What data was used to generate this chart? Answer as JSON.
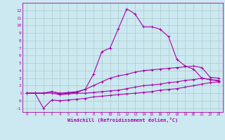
{
  "xlabel": "Windchill (Refroidissement éolien,°C)",
  "background_color": "#cce8f0",
  "grid_color": "#aacccc",
  "line_color": "#aa00aa",
  "x_vals": [
    0,
    1,
    2,
    3,
    4,
    5,
    6,
    7,
    8,
    9,
    10,
    11,
    12,
    13,
    14,
    15,
    16,
    17,
    18,
    19,
    20,
    21,
    22,
    23
  ],
  "series_spike": [
    1,
    1,
    1,
    1.2,
    0.9,
    1.0,
    1.1,
    1.5,
    3.5,
    6.5,
    7.0,
    9.6,
    12.2,
    11.5,
    9.8,
    9.8,
    9.5,
    8.5,
    5.5,
    4.6,
    4.2,
    3.0,
    2.8,
    2.7
  ],
  "series_upper": [
    1,
    1,
    1,
    1.2,
    1.0,
    1.1,
    1.2,
    1.5,
    2.0,
    2.5,
    3.0,
    3.3,
    3.5,
    3.8,
    4.0,
    4.1,
    4.2,
    4.3,
    4.4,
    4.5,
    4.6,
    4.4,
    3.1,
    3.0
  ],
  "series_mid": [
    1,
    1,
    1,
    1.0,
    0.8,
    0.9,
    1.0,
    1.0,
    1.1,
    1.2,
    1.3,
    1.4,
    1.6,
    1.8,
    2.0,
    2.1,
    2.2,
    2.4,
    2.5,
    2.7,
    2.8,
    3.0,
    2.8,
    2.6
  ],
  "series_lower": [
    1,
    1,
    -1.0,
    0.1,
    0.0,
    0.1,
    0.2,
    0.3,
    0.5,
    0.6,
    0.7,
    0.8,
    0.9,
    1.0,
    1.1,
    1.2,
    1.4,
    1.5,
    1.6,
    1.8,
    2.0,
    2.2,
    2.4,
    2.5
  ],
  "xlim": [
    -0.5,
    23.5
  ],
  "ylim": [
    -1.5,
    13
  ],
  "xticks": [
    0,
    1,
    2,
    3,
    4,
    5,
    6,
    7,
    8,
    9,
    10,
    11,
    12,
    13,
    14,
    15,
    16,
    17,
    18,
    19,
    20,
    21,
    22,
    23
  ],
  "yticks": [
    -1,
    0,
    1,
    2,
    3,
    4,
    5,
    6,
    7,
    8,
    9,
    10,
    11,
    12
  ]
}
